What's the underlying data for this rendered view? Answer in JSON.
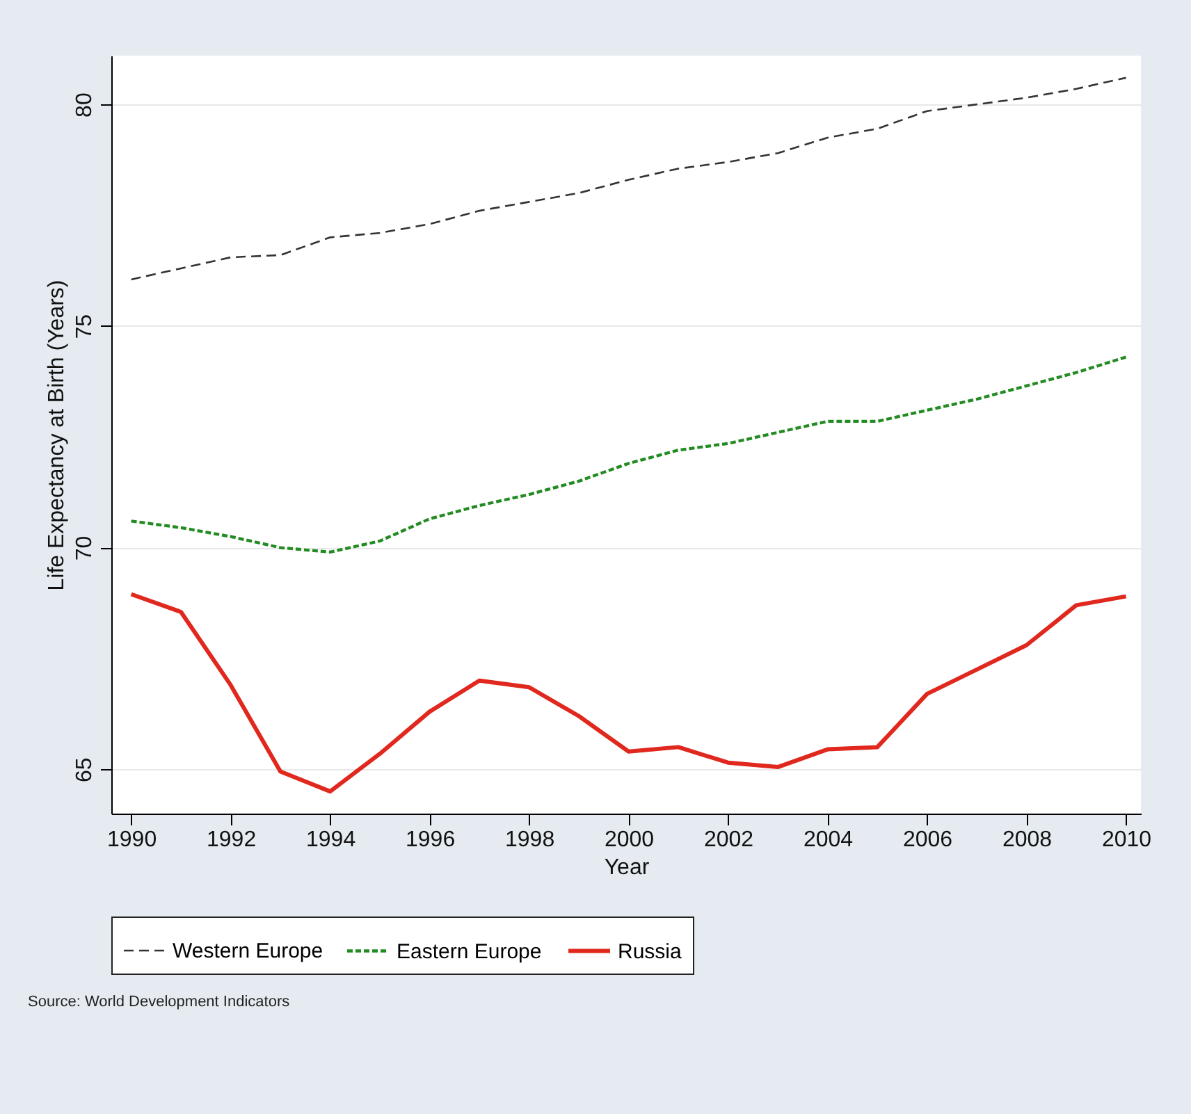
{
  "chart_data": {
    "type": "line",
    "xlabel": "Year",
    "ylabel": "Life Expectancy at Birth (Years)",
    "x": [
      1990,
      1991,
      1992,
      1993,
      1994,
      1995,
      1996,
      1997,
      1998,
      1999,
      2000,
      2001,
      2002,
      2003,
      2004,
      2005,
      2006,
      2007,
      2008,
      2009,
      2010
    ],
    "series": [
      {
        "name": "Western Europe",
        "color": "#333333",
        "line_style": "dashed",
        "values": [
          76.05,
          76.3,
          76.55,
          76.6,
          77.0,
          77.1,
          77.3,
          77.6,
          77.8,
          78.0,
          78.3,
          78.55,
          78.7,
          78.9,
          79.25,
          79.45,
          79.85,
          80.0,
          80.15,
          80.35,
          80.6
        ]
      },
      {
        "name": "Eastern Europe",
        "color": "#228b22",
        "line_style": "dotted",
        "values": [
          70.6,
          70.45,
          70.25,
          70.0,
          69.9,
          70.15,
          70.65,
          70.95,
          71.2,
          71.5,
          71.9,
          72.2,
          72.35,
          72.6,
          72.85,
          72.85,
          73.1,
          73.35,
          73.65,
          73.95,
          74.3
        ]
      },
      {
        "name": "Russia",
        "color": "#e0281e",
        "line_style": "solid",
        "values": [
          68.95,
          68.55,
          66.9,
          64.95,
          64.5,
          65.35,
          66.3,
          67.0,
          66.85,
          66.2,
          65.4,
          65.5,
          65.15,
          65.05,
          65.45,
          65.5,
          66.7,
          67.25,
          67.8,
          68.7,
          68.9
        ]
      }
    ],
    "xlim": [
      1989.6,
      2010.3
    ],
    "xticks": [
      1990,
      1992,
      1994,
      1996,
      1998,
      2000,
      2002,
      2004,
      2006,
      2008,
      2010
    ],
    "ylim": [
      64,
      81.1
    ],
    "yticks": [
      65,
      70,
      75,
      80
    ],
    "grid": "y",
    "legend": "bottom",
    "marker": "none",
    "annotations": [
      "Source: World Development Indicators"
    ]
  }
}
